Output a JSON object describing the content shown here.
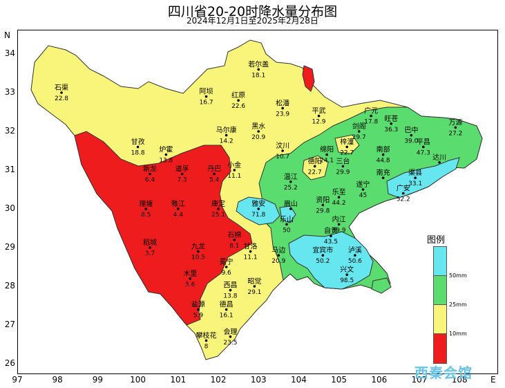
{
  "title": "四川省20-20时降水量分布图",
  "subtitle": "2024年12月1日至2025年2月28日",
  "axes": {
    "y_axis_letter": "N",
    "x_axis_letter": "E",
    "lat_ticks": [
      "34",
      "33",
      "32",
      "31",
      "30",
      "29",
      "28",
      "27",
      "26"
    ],
    "lon_ticks": [
      "97",
      "98",
      "99",
      "100",
      "101",
      "102",
      "103",
      "104",
      "105",
      "106",
      "107",
      "108"
    ]
  },
  "legend": {
    "title": "图例",
    "items": [
      {
        "label": "50mm",
        "color": "#66e6ee"
      },
      {
        "label": "25mm",
        "color": "#5bdc6e"
      },
      {
        "label": "10mm",
        "color": "#f8f57a"
      },
      {
        "label": "",
        "color": "#ee1c1c"
      }
    ]
  },
  "colors": {
    "red": "#ee1c1c",
    "yellow": "#f8f57a",
    "green": "#5bdc6e",
    "cyan": "#66e6ee"
  },
  "stations": [
    {
      "name": "若尔盖",
      "value": "18.1",
      "lon": 103.0,
      "lat": 33.6
    },
    {
      "name": "石渠",
      "value": "22.8",
      "lon": 98.1,
      "lat": 33.0
    },
    {
      "name": "阿坝",
      "value": "16.7",
      "lon": 101.7,
      "lat": 32.9
    },
    {
      "name": "红原",
      "value": "22.6",
      "lon": 102.5,
      "lat": 32.8
    },
    {
      "name": "松潘",
      "value": "23.9",
      "lon": 103.6,
      "lat": 32.6
    },
    {
      "name": "平武",
      "value": "12.9",
      "lon": 104.5,
      "lat": 32.4
    },
    {
      "name": "广元",
      "value": "17.8",
      "lon": 105.8,
      "lat": 32.4
    },
    {
      "name": "旺苍",
      "value": "36.3",
      "lon": 106.3,
      "lat": 32.2
    },
    {
      "name": "万源",
      "value": "27.2",
      "lon": 107.9,
      "lat": 32.1
    },
    {
      "name": "马尔康",
      "value": "14.2",
      "lon": 102.2,
      "lat": 31.9
    },
    {
      "name": "黑水",
      "value": "20.9",
      "lon": 103.0,
      "lat": 32.0
    },
    {
      "name": "甘孜",
      "value": "18.8",
      "lon": 100.0,
      "lat": 31.6
    },
    {
      "name": "剑阁",
      "value": "29.7",
      "lon": 105.5,
      "lat": 32.0
    },
    {
      "name": "巴中",
      "value": "39.0",
      "lon": 106.8,
      "lat": 31.9
    },
    {
      "name": "平昌",
      "value": "47.3",
      "lon": 107.1,
      "lat": 31.6
    },
    {
      "name": "绵阳",
      "value": "24.1",
      "lon": 104.7,
      "lat": 31.4
    },
    {
      "name": "梓潼",
      "value": "22.7",
      "lon": 105.2,
      "lat": 31.6
    },
    {
      "name": "南部",
      "value": "44.8",
      "lon": 106.1,
      "lat": 31.4
    },
    {
      "name": "炉霍",
      "value": "13.8",
      "lon": 100.7,
      "lat": 31.4
    },
    {
      "name": "汶川",
      "value": "10.7",
      "lon": 103.6,
      "lat": 31.5
    },
    {
      "name": "德阳",
      "value": "22.7",
      "lon": 104.4,
      "lat": 31.1
    },
    {
      "name": "三台",
      "value": "29.9",
      "lon": 105.1,
      "lat": 31.1
    },
    {
      "name": "达川",
      "value": "",
      "lon": 107.5,
      "lat": 31.2
    },
    {
      "name": "道孚",
      "value": "7.3",
      "lon": 101.1,
      "lat": 30.9
    },
    {
      "name": "丹巴",
      "value": "5.4",
      "lon": 101.9,
      "lat": 30.9
    },
    {
      "name": "小金",
      "value": "11.1",
      "lon": 102.4,
      "lat": 31.0
    },
    {
      "name": "新龙",
      "value": "6.4",
      "lon": 100.3,
      "lat": 30.9
    },
    {
      "name": "南充",
      "value": "",
      "lon": 106.1,
      "lat": 30.8
    },
    {
      "name": "渠县",
      "value": "33.1",
      "lon": 106.9,
      "lat": 30.8
    },
    {
      "name": "温江",
      "value": "25.2",
      "lon": 103.8,
      "lat": 30.7
    },
    {
      "name": "遂宁",
      "value": "45",
      "lon": 105.6,
      "lat": 30.5
    },
    {
      "name": "广安",
      "value": "52.2",
      "lon": 106.6,
      "lat": 30.4
    },
    {
      "name": "乐至",
      "value": "44.2",
      "lon": 105.0,
      "lat": 30.3
    },
    {
      "name": "资阳",
      "value": "29.8",
      "lon": 104.6,
      "lat": 30.1
    },
    {
      "name": "理塘",
      "value": "8.5",
      "lon": 100.2,
      "lat": 30.0
    },
    {
      "name": "雅江",
      "value": "4.4",
      "lon": 101.0,
      "lat": 30.0
    },
    {
      "name": "康定",
      "value": "25.1",
      "lon": 102.0,
      "lat": 30.0
    },
    {
      "name": "雅安",
      "value": "71.8",
      "lon": 103.0,
      "lat": 30.0
    },
    {
      "name": "眉山",
      "value": "",
      "lon": 103.8,
      "lat": 30.0
    },
    {
      "name": "内江",
      "value": "39.9",
      "lon": 105.0,
      "lat": 29.6
    },
    {
      "name": "乐山",
      "value": "50",
      "lon": 103.7,
      "lat": 29.6
    },
    {
      "name": "自贡",
      "value": "43.5",
      "lon": 104.8,
      "lat": 29.3
    },
    {
      "name": "石棉",
      "value": "8.1",
      "lon": 102.4,
      "lat": 29.2
    },
    {
      "name": "甘洛",
      "value": "11.1",
      "lon": 102.8,
      "lat": 28.9
    },
    {
      "name": "稻城",
      "value": "3.7",
      "lon": 100.3,
      "lat": 29.0
    },
    {
      "name": "九龙",
      "value": "10.5",
      "lon": 101.5,
      "lat": 28.9
    },
    {
      "name": "马边",
      "value": "20.9",
      "lon": 103.5,
      "lat": 28.8
    },
    {
      "name": "宜宾市",
      "value": "50.2",
      "lon": 104.6,
      "lat": 28.8
    },
    {
      "name": "泸溪",
      "value": "50.6",
      "lon": 105.4,
      "lat": 28.8
    },
    {
      "name": "冕宁",
      "value": "9.6",
      "lon": 102.2,
      "lat": 28.5
    },
    {
      "name": "兴文",
      "value": "98.5",
      "lon": 105.2,
      "lat": 28.3
    },
    {
      "name": "木里",
      "value": "5.6",
      "lon": 101.3,
      "lat": 28.2
    },
    {
      "name": "西昌",
      "value": "13.8",
      "lon": 102.3,
      "lat": 27.9
    },
    {
      "name": "昭觉",
      "value": "29.1",
      "lon": 102.9,
      "lat": 28.0
    },
    {
      "name": "盐源",
      "value": "5.9",
      "lon": 101.5,
      "lat": 27.4
    },
    {
      "name": "德昌",
      "value": "16.1",
      "lon": 102.2,
      "lat": 27.4
    },
    {
      "name": "会理",
      "value": "23.5",
      "lon": 102.3,
      "lat": 26.7
    },
    {
      "name": "攀枝花",
      "value": "8",
      "lon": 101.7,
      "lat": 26.6
    }
  ],
  "watermark": "西秦会馆"
}
